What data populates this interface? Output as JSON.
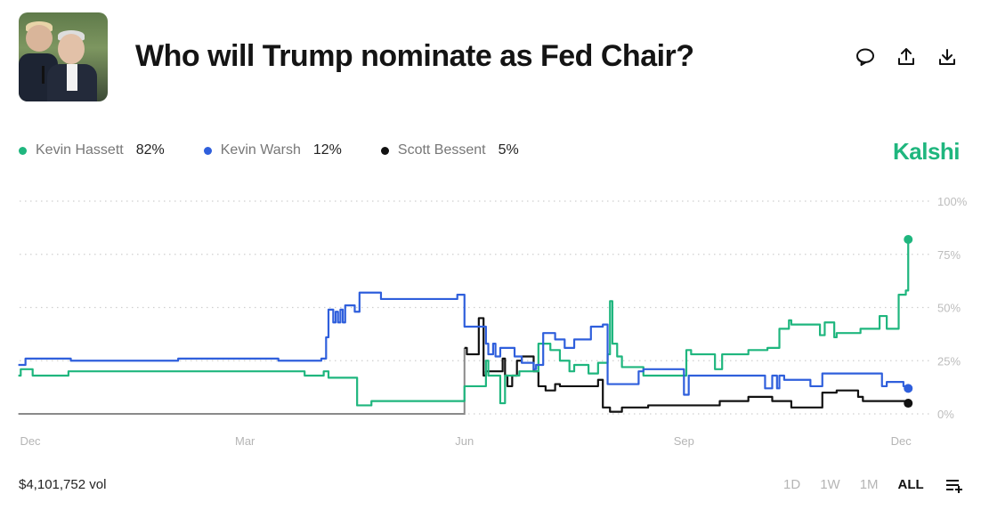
{
  "header": {
    "title": "Who will Trump nominate as Fed Chair?",
    "icons": [
      "comment-icon",
      "share-icon",
      "download-icon"
    ]
  },
  "brand": "Kalshi",
  "colors": {
    "hassett": "#1fb67e",
    "warsh": "#2f5fdc",
    "bessent": "#111111",
    "brand": "#1fb67e"
  },
  "legend": [
    {
      "name": "Kevin Hassett",
      "value": "82%"
    },
    {
      "name": "Kevin Warsh",
      "value": "12%"
    },
    {
      "name": "Scott Bessent",
      "value": "5%"
    }
  ],
  "footer": {
    "volume": "$4,101,752 vol",
    "ranges": [
      "1D",
      "1W",
      "1M",
      "ALL"
    ],
    "active_range": "ALL"
  },
  "chart_data": {
    "type": "line",
    "step": true,
    "title": "",
    "xlabel": "",
    "ylabel": "",
    "ylim": [
      0,
      100
    ],
    "y_ticks": [
      "100%",
      "75%",
      "50%",
      "25%",
      "0%"
    ],
    "y_tick_values": [
      100,
      75,
      50,
      25,
      0
    ],
    "y_axis_side": "right",
    "x_ticks": [
      {
        "label": "Dec",
        "date": "2024-12-01"
      },
      {
        "label": "Mar",
        "date": "2025-03-01"
      },
      {
        "label": "Jun",
        "date": "2025-06-01"
      },
      {
        "label": "Sep",
        "date": "2025-09-01"
      },
      {
        "label": "Dec",
        "date": "2025-12-01"
      }
    ],
    "grid": "horizontal dotted",
    "legend_position": "top-left",
    "series": [
      {
        "name": "Kevin Hassett",
        "color": "#1fb67e",
        "points": [
          [
            "2024-11-26",
            18
          ],
          [
            "2024-11-27",
            21
          ],
          [
            "2024-12-02",
            18
          ],
          [
            "2024-12-17",
            20
          ],
          [
            "2025-03-26",
            18
          ],
          [
            "2025-04-03",
            20
          ],
          [
            "2025-04-05",
            17
          ],
          [
            "2025-04-17",
            4
          ],
          [
            "2025-04-23",
            6
          ],
          [
            "2025-06-01",
            13
          ],
          [
            "2025-06-10",
            25
          ],
          [
            "2025-06-11",
            18
          ],
          [
            "2025-06-16",
            5
          ],
          [
            "2025-06-18",
            18
          ],
          [
            "2025-06-24",
            20
          ],
          [
            "2025-07-02",
            33
          ],
          [
            "2025-07-07",
            30
          ],
          [
            "2025-07-11",
            25
          ],
          [
            "2025-07-15",
            20
          ],
          [
            "2025-07-17",
            23
          ],
          [
            "2025-07-23",
            19
          ],
          [
            "2025-07-27",
            24
          ],
          [
            "2025-07-31",
            28
          ],
          [
            "2025-08-01",
            53
          ],
          [
            "2025-08-02",
            33
          ],
          [
            "2025-08-04",
            27
          ],
          [
            "2025-08-06",
            22
          ],
          [
            "2025-08-15",
            18
          ],
          [
            "2025-09-02",
            30
          ],
          [
            "2025-09-04",
            28
          ],
          [
            "2025-09-14",
            21
          ],
          [
            "2025-09-17",
            28
          ],
          [
            "2025-09-28",
            30
          ],
          [
            "2025-10-06",
            31
          ],
          [
            "2025-10-11",
            40
          ],
          [
            "2025-10-15",
            44
          ],
          [
            "2025-10-16",
            42
          ],
          [
            "2025-10-28",
            37
          ],
          [
            "2025-10-30",
            43
          ],
          [
            "2025-11-03",
            36
          ],
          [
            "2025-11-04",
            38
          ],
          [
            "2025-11-14",
            40
          ],
          [
            "2025-11-22",
            46
          ],
          [
            "2025-11-25",
            40
          ],
          [
            "2025-11-30",
            56
          ],
          [
            "2025-12-03",
            58
          ],
          [
            "2025-12-04",
            82
          ]
        ]
      },
      {
        "name": "Kevin Warsh",
        "color": "#2f5fdc",
        "points": [
          [
            "2024-11-26",
            23
          ],
          [
            "2024-11-29",
            26
          ],
          [
            "2024-12-18",
            25
          ],
          [
            "2025-02-01",
            26
          ],
          [
            "2025-03-15",
            25
          ],
          [
            "2025-04-02",
            26
          ],
          [
            "2025-04-04",
            36
          ],
          [
            "2025-04-05",
            49
          ],
          [
            "2025-04-07",
            43
          ],
          [
            "2025-04-08",
            48
          ],
          [
            "2025-04-09",
            43
          ],
          [
            "2025-04-10",
            49
          ],
          [
            "2025-04-11",
            43
          ],
          [
            "2025-04-12",
            51
          ],
          [
            "2025-04-16",
            48
          ],
          [
            "2025-04-18",
            57
          ],
          [
            "2025-04-27",
            54
          ],
          [
            "2025-05-29",
            56
          ],
          [
            "2025-06-01",
            41
          ],
          [
            "2025-06-10",
            33
          ],
          [
            "2025-06-11",
            28
          ],
          [
            "2025-06-13",
            33
          ],
          [
            "2025-06-14",
            27
          ],
          [
            "2025-06-16",
            31
          ],
          [
            "2025-06-22",
            27
          ],
          [
            "2025-06-25",
            24
          ],
          [
            "2025-06-30",
            21
          ],
          [
            "2025-07-01",
            23
          ],
          [
            "2025-07-04",
            38
          ],
          [
            "2025-07-09",
            35
          ],
          [
            "2025-07-13",
            31
          ],
          [
            "2025-07-17",
            35
          ],
          [
            "2025-07-24",
            41
          ],
          [
            "2025-07-29",
            42
          ],
          [
            "2025-07-31",
            14
          ],
          [
            "2025-08-13",
            20
          ],
          [
            "2025-08-15",
            21
          ],
          [
            "2025-09-01",
            9
          ],
          [
            "2025-09-03",
            18
          ],
          [
            "2025-10-05",
            12
          ],
          [
            "2025-10-08",
            18
          ],
          [
            "2025-10-10",
            12
          ],
          [
            "2025-10-11",
            18
          ],
          [
            "2025-10-13",
            16
          ],
          [
            "2025-10-24",
            13
          ],
          [
            "2025-10-29",
            19
          ],
          [
            "2025-11-23",
            13
          ],
          [
            "2025-11-25",
            15
          ],
          [
            "2025-12-02",
            13
          ],
          [
            "2025-12-04",
            12
          ]
        ]
      },
      {
        "name": "Scott Bessent",
        "color": "#111111",
        "points": [
          [
            "2024-11-26",
            0
          ],
          [
            "2025-06-01",
            31
          ],
          [
            "2025-06-02",
            28
          ],
          [
            "2025-06-07",
            45
          ],
          [
            "2025-06-09",
            18
          ],
          [
            "2025-06-10",
            20
          ],
          [
            "2025-06-17",
            26
          ],
          [
            "2025-06-18",
            18
          ],
          [
            "2025-06-19",
            13
          ],
          [
            "2025-06-21",
            18
          ],
          [
            "2025-06-23",
            25
          ],
          [
            "2025-06-25",
            27
          ],
          [
            "2025-06-30",
            20
          ],
          [
            "2025-07-02",
            13
          ],
          [
            "2025-07-05",
            11
          ],
          [
            "2025-07-09",
            14
          ],
          [
            "2025-07-11",
            13
          ],
          [
            "2025-07-27",
            16
          ],
          [
            "2025-07-29",
            3
          ],
          [
            "2025-08-01",
            1
          ],
          [
            "2025-08-06",
            3
          ],
          [
            "2025-08-17",
            4
          ],
          [
            "2025-09-16",
            6
          ],
          [
            "2025-09-28",
            8
          ],
          [
            "2025-10-08",
            6
          ],
          [
            "2025-10-16",
            3
          ],
          [
            "2025-10-29",
            10
          ],
          [
            "2025-11-04",
            11
          ],
          [
            "2025-11-13",
            8
          ],
          [
            "2025-11-15",
            6
          ],
          [
            "2025-12-04",
            5
          ]
        ]
      }
    ]
  }
}
